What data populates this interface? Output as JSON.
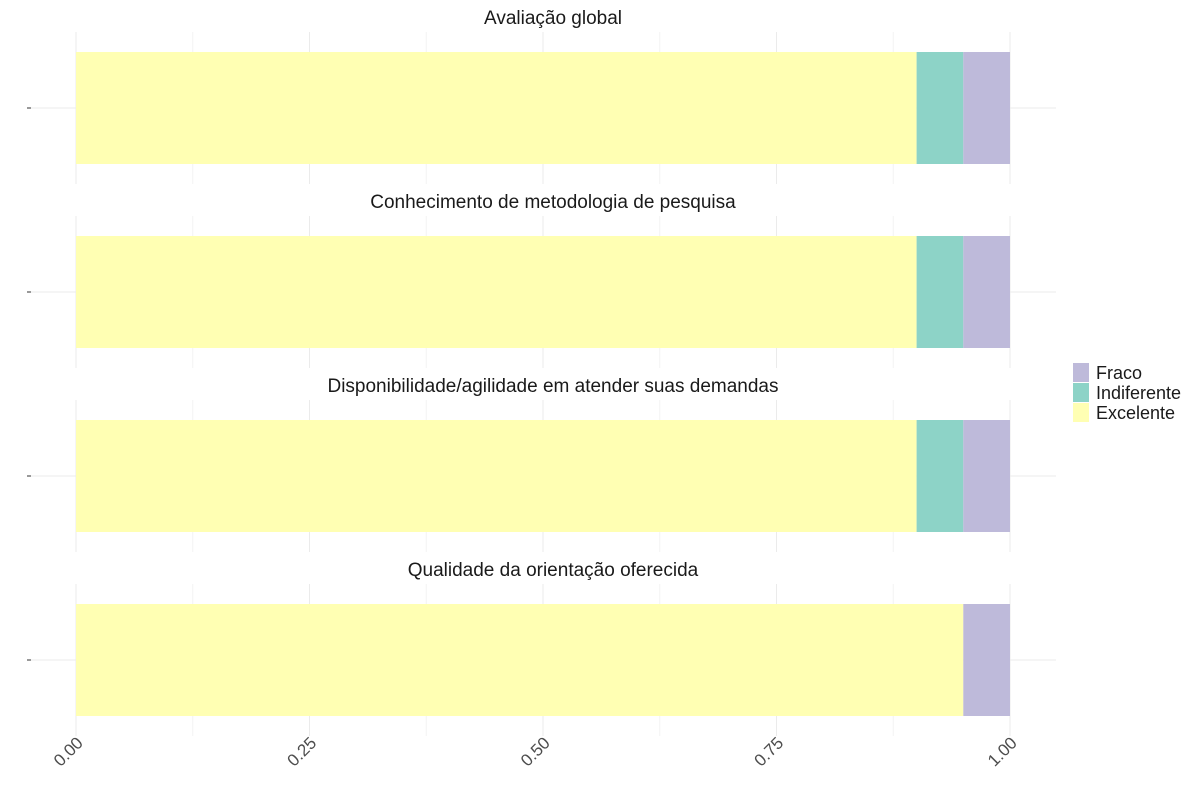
{
  "chart_data": {
    "type": "bar",
    "orientation": "horizontal",
    "stacked": true,
    "xlim": [
      0,
      1
    ],
    "x_ticks": [
      "0.00",
      "0.25",
      "0.50",
      "0.75",
      "1.00"
    ],
    "x_tick_values": [
      0,
      0.25,
      0.5,
      0.75,
      1
    ],
    "grid": true,
    "legend_position": "right",
    "legend": [
      {
        "name": "Fraco",
        "color": "#bebada"
      },
      {
        "name": "Indiferente",
        "color": "#8dd3c7"
      },
      {
        "name": "Excelente",
        "color": "#ffffb3"
      }
    ],
    "stack_order": [
      "Excelente",
      "Indiferente",
      "Fraco"
    ],
    "facets": [
      {
        "title": "Avaliação global",
        "values": {
          "Excelente": 0.9,
          "Indiferente": 0.05,
          "Fraco": 0.05
        }
      },
      {
        "title": "Conhecimento de metodologia de pesquisa",
        "values": {
          "Excelente": 0.9,
          "Indiferente": 0.05,
          "Fraco": 0.05
        }
      },
      {
        "title": "Disponibilidade/agilidade em atender suas demandas",
        "values": {
          "Excelente": 0.9,
          "Indiferente": 0.05,
          "Fraco": 0.05
        }
      },
      {
        "title": "Qualidade da orientação oferecida",
        "values": {
          "Excelente": 0.95,
          "Indiferente": 0,
          "Fraco": 0.05
        }
      }
    ]
  }
}
